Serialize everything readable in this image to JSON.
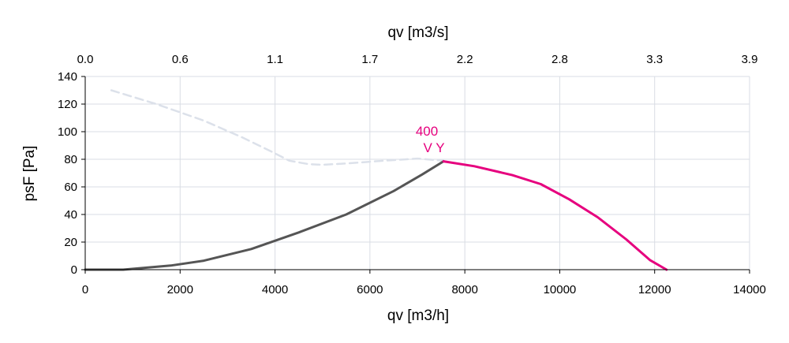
{
  "chart_data": {
    "type": "line",
    "x": {
      "label": "qv [m3/h]",
      "min": 0,
      "max": 14000,
      "ticks": [
        0,
        2000,
        4000,
        6000,
        8000,
        10000,
        12000,
        14000
      ],
      "tick_labels": [
        "0",
        "2000",
        "4000",
        "6000",
        "8000",
        "10000",
        "12000",
        "14000"
      ]
    },
    "x2": {
      "label": "qv [m3/s]",
      "tick_labels": [
        "0.0",
        "0.6",
        "1.1",
        "1.7",
        "2.2",
        "2.8",
        "3.3",
        "3.9"
      ]
    },
    "y": {
      "label": "psF [Pa]",
      "min": 0,
      "max": 140,
      "ticks": [
        0,
        20,
        40,
        60,
        80,
        100,
        120,
        140
      ],
      "tick_labels": [
        "0",
        "20",
        "40",
        "60",
        "80",
        "100",
        "120",
        "140"
      ]
    },
    "grid": true,
    "annotations": [
      {
        "text": "400",
        "color": "#e6007e"
      },
      {
        "text": "V Y",
        "color": "#e6007e"
      }
    ],
    "series": [
      {
        "name": "",
        "style": "dashed",
        "color": "#dce1ea",
        "points": [
          [
            550,
            130
          ],
          [
            1500,
            120
          ],
          [
            2500,
            108
          ],
          [
            3300,
            96
          ],
          [
            3900,
            86
          ],
          [
            4300,
            79
          ],
          [
            4700,
            76.5
          ],
          [
            5000,
            76
          ],
          [
            5500,
            77
          ],
          [
            6300,
            79
          ],
          [
            7000,
            80.5
          ],
          [
            7550,
            79
          ]
        ]
      },
      {
        "name": "",
        "style": "solid",
        "color": "#555555",
        "points": [
          [
            0,
            0
          ],
          [
            800,
            0
          ],
          [
            1800,
            3
          ],
          [
            2500,
            6.5
          ],
          [
            3500,
            15
          ],
          [
            4500,
            27
          ],
          [
            5500,
            40
          ],
          [
            6500,
            57
          ],
          [
            7100,
            69
          ],
          [
            7550,
            78.5
          ]
        ]
      },
      {
        "name": "",
        "style": "solid",
        "color": "#e6007e",
        "points": [
          [
            7550,
            78.5
          ],
          [
            8200,
            75
          ],
          [
            9000,
            68.5
          ],
          [
            9600,
            62
          ],
          [
            10200,
            51
          ],
          [
            10800,
            38
          ],
          [
            11400,
            22
          ],
          [
            11900,
            7
          ],
          [
            12250,
            0
          ]
        ]
      }
    ]
  }
}
